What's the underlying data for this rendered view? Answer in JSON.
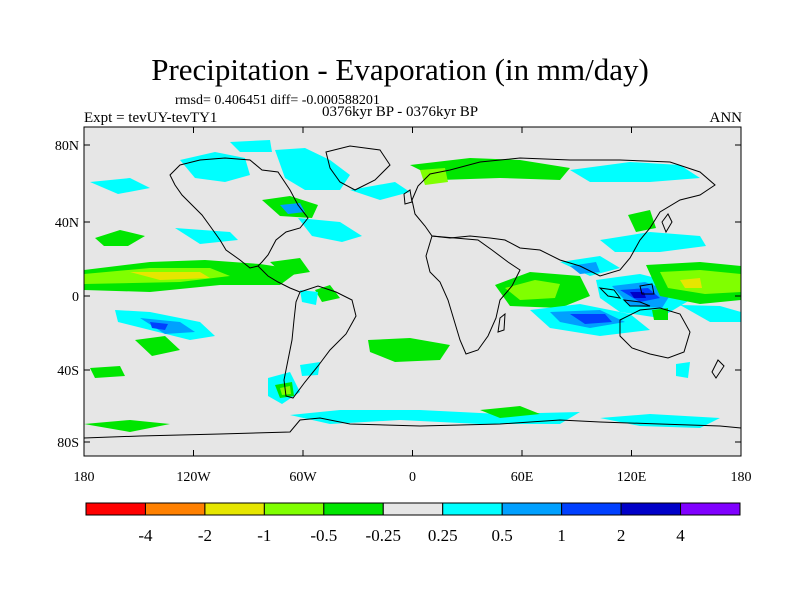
{
  "title": "Precipitation - Evaporation (in mm/day)",
  "stats": "rmsd= 0.406451 diff= -0.000588201",
  "experiment": "Expt = tevUY-tevTY1",
  "period": "0376kyr BP - 0376kyr BP",
  "season": "ANN",
  "map": {
    "land_color": "#e6e6e6",
    "lat_labels": [
      "80N",
      "40N",
      "0",
      "40S",
      "80S"
    ],
    "lon_labels": [
      "180",
      "120W",
      "60W",
      "0",
      "60E",
      "120E",
      "180"
    ]
  },
  "colorbar": {
    "colors": [
      "#ff0000",
      "#ff8000",
      "#e6e600",
      "#80ff00",
      "#00e600",
      "#e6e6e6",
      "#00ffff",
      "#00a0ff",
      "#0040ff",
      "#0000c8",
      "#8000ff"
    ],
    "labels": [
      "-4",
      "-2",
      "-1",
      "-0.5",
      "-0.25",
      "0.25",
      "0.5",
      "1",
      "2",
      "4"
    ]
  }
}
